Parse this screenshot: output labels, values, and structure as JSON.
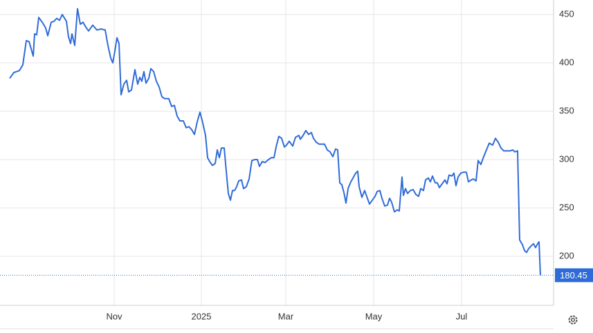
{
  "chart_data": {
    "type": "line",
    "x": [
      14,
      20,
      28,
      33,
      38,
      42,
      48,
      50,
      53,
      56,
      62,
      66,
      69,
      74,
      78,
      82,
      86,
      90,
      96,
      99,
      102,
      104,
      108,
      112,
      116,
      120,
      124,
      128,
      134,
      140,
      146,
      152,
      156,
      160,
      163,
      166,
      169,
      172,
      175,
      179,
      183,
      186,
      190,
      195,
      199,
      202,
      205,
      208,
      211,
      215,
      218,
      222,
      226,
      230,
      234,
      238,
      244,
      248,
      252,
      256,
      260,
      265,
      269,
      273,
      277,
      281,
      285,
      289,
      293,
      297,
      300,
      303,
      307,
      311,
      314,
      317,
      320,
      324,
      328,
      330,
      333,
      336,
      339,
      342,
      345,
      349,
      352,
      356,
      360,
      364,
      368,
      372,
      375,
      379,
      383,
      388,
      392,
      396,
      399,
      403,
      407,
      411,
      414,
      418,
      423,
      427,
      432,
      434,
      438,
      442,
      446,
      450,
      453,
      457,
      461,
      465,
      469,
      473,
      477,
      481,
      485,
      488,
      491,
      494,
      497,
      500,
      503,
      507,
      511,
      514,
      517,
      519,
      523,
      527,
      530,
      534,
      538,
      542,
      545,
      549,
      552,
      556,
      560,
      563,
      566,
      570,
      574,
      577,
      581,
      583,
      586,
      589,
      593,
      597,
      601,
      605,
      608,
      612,
      615,
      619,
      622,
      625,
      629,
      632,
      635,
      639,
      643,
      646,
      649,
      653,
      656,
      659,
      662,
      666,
      670,
      674,
      677,
      681,
      684,
      688,
      691,
      695,
      699,
      703,
      707,
      712,
      716,
      720,
      724,
      728,
      733,
      737,
      741,
      744,
      748,
      751,
      755,
      758,
      761,
      764,
      768,
      771,
      774,
      777,
      779,
      781
    ],
    "series": [
      {
        "color": "#2f6bd8",
        "values": [
          384,
          390,
          392,
          398,
          423,
          422,
          407,
          430,
          429,
          447,
          441,
          436,
          428,
          442,
          443,
          446,
          444,
          450,
          443,
          427,
          420,
          430,
          418,
          456,
          440,
          442,
          437,
          433,
          439,
          434,
          435,
          434,
          418,
          405,
          400,
          412,
          426,
          420,
          367,
          378,
          382,
          370,
          372,
          393,
          378,
          385,
          381,
          391,
          379,
          384,
          394,
          391,
          381,
          375,
          365,
          363,
          363,
          355,
          356,
          345,
          340,
          340,
          333,
          334,
          331,
          326,
          339,
          349,
          338,
          325,
          302,
          298,
          294,
          296,
          310,
          302,
          312,
          312,
          280,
          265,
          258,
          268,
          268,
          272,
          278,
          279,
          270,
          272,
          280,
          299,
          300,
          300,
          293,
          298,
          297,
          300,
          302,
          302,
          313,
          324,
          322,
          313,
          315,
          319,
          314,
          323,
          325,
          321,
          325,
          330,
          326,
          328,
          322,
          318,
          316,
          316,
          316,
          310,
          308,
          303,
          311,
          310,
          276,
          274,
          266,
          255,
          270,
          277,
          282,
          286,
          288,
          272,
          261,
          268,
          262,
          254,
          258,
          262,
          267,
          268,
          260,
          252,
          253,
          260,
          256,
          246,
          248,
          247,
          282,
          263,
          270,
          265,
          268,
          269,
          264,
          262,
          270,
          268,
          279,
          281,
          277,
          283,
          276,
          276,
          271,
          275,
          279,
          275,
          284,
          283,
          286,
          273,
          282,
          286,
          287,
          287,
          277,
          279,
          280,
          278,
          299,
          295,
          303,
          310,
          317,
          315,
          322,
          318,
          312,
          309,
          309,
          309,
          310,
          308,
          309,
          217,
          212,
          206,
          204,
          208,
          211,
          213,
          209,
          213,
          215,
          180.45
        ]
      }
    ],
    "xlim": [
      0,
      800
    ],
    "xticks": [
      {
        "value": 165,
        "label": "Nov"
      },
      {
        "value": 291,
        "label": "2025"
      },
      {
        "value": 413,
        "label": "Mar"
      },
      {
        "value": 540,
        "label": "May"
      },
      {
        "value": 667,
        "label": "Jul"
      }
    ],
    "ylim": [
      149.3,
      465
    ],
    "yticks": [
      200,
      250,
      300,
      350,
      400,
      450
    ],
    "grid": true
  }
}
